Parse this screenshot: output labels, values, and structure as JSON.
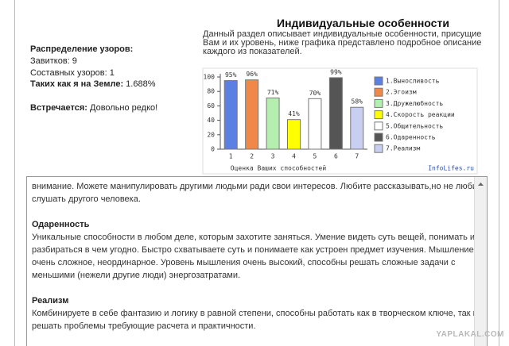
{
  "left_panel": {
    "heading": "Распределение узоров:",
    "whorls": "Завитков: 9",
    "composite": "Составных узоров: 1",
    "rarity_label": "Таких как я на Земле:",
    "rarity_value": "1.688%",
    "occurs_label": "Встречается:",
    "occurs_value": "Довольно редко!"
  },
  "header": {
    "title": "Индивидуальные особенности",
    "description": [
      "Данный раздел описывает индивидуальные особенности, присущие",
      "Вам и их уровень, ниже графика представлено подробное описание",
      "каждого из показателей."
    ]
  },
  "chart_data": {
    "type": "bar",
    "categories": [
      "1",
      "2",
      "3",
      "4",
      "5",
      "6",
      "7"
    ],
    "values": [
      95,
      96,
      71,
      41,
      70,
      99,
      58
    ],
    "value_labels": [
      "95%",
      "96%",
      "71%",
      "41%",
      "70%",
      "99%",
      "58%"
    ],
    "colors": [
      "#5b7fe3",
      "#f0884a",
      "#b5efb0",
      "#ffff00",
      "#ffffff",
      "#555555",
      "#c9cff0"
    ],
    "legend": [
      "1.Выносливость",
      "2.Эгоизм",
      "3.Дружелюбность",
      "4.Скорость реакции",
      "5.Общительность",
      "6.Одаренность",
      "7.Реализм"
    ],
    "x_label": "Оценка Ваших способностей",
    "source": "InfoLifes.ru",
    "ylim": [
      0,
      100
    ],
    "yticks": [
      0,
      20,
      40,
      60,
      80,
      100
    ]
  },
  "text_area": {
    "blocks": [
      {
        "lines": [
          "внимание. Можете манипулировать другими людьми ради свои интересов. Любите рассказывать,но не любите",
          "слушать другого человека."
        ]
      },
      {
        "heading": "Одаренность",
        "lines": [
          "Уникальные способности в любом деле, которым захотите заняться. Умение видеть суть вещей, понимать и",
          "разбираться в чем угодно. Быстро схватываете суть и понимаете как устроен предмет изучения. Мышление",
          "очень сложное, неординарное. Уровень мышления очень высокий, способны решать сложные задачи с",
          "меньшими (нежели другие люди) энергозатратами."
        ]
      },
      {
        "heading": "Реализм",
        "lines": [
          "Комбинируете в себе фантазию и логику в равной степени, способны работать как в творческом ключе, так и",
          "решать проблемы требующие расчета и практичности."
        ]
      }
    ]
  },
  "watermark": "YAPLAKAL.COM"
}
